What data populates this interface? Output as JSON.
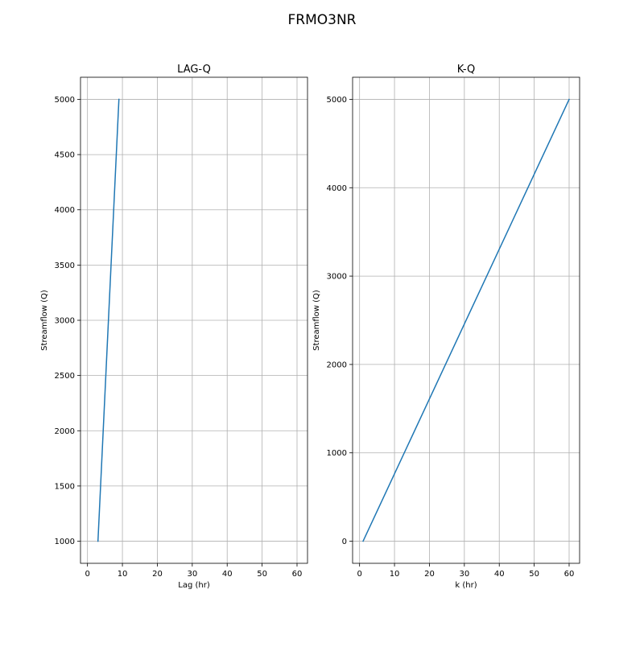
{
  "figure": {
    "title": "FRMO3NR"
  },
  "chart_data": [
    {
      "type": "line",
      "title": "LAG-Q",
      "xlabel": "Lag (hr)",
      "ylabel": "Streamflow (Q)",
      "xlim": [
        -2,
        63
      ],
      "ylim": [
        800,
        5200
      ],
      "xticks": [
        0,
        10,
        20,
        30,
        40,
        50,
        60
      ],
      "yticks": [
        1000,
        1500,
        2000,
        2500,
        3000,
        3500,
        4000,
        4500,
        5000
      ],
      "grid": true,
      "color": "#1f77b4",
      "series": [
        {
          "x": [
            3,
            9
          ],
          "y": [
            1000,
            5000
          ]
        }
      ]
    },
    {
      "type": "line",
      "title": "K-Q",
      "xlabel": "k (hr)",
      "ylabel": "Streamflow (Q)",
      "xlim": [
        -2,
        63
      ],
      "ylim": [
        -250,
        5250
      ],
      "xticks": [
        0,
        10,
        20,
        30,
        40,
        50,
        60
      ],
      "yticks": [
        0,
        1000,
        2000,
        3000,
        4000,
        5000
      ],
      "grid": true,
      "color": "#1f77b4",
      "series": [
        {
          "x": [
            1,
            60
          ],
          "y": [
            0,
            5000
          ]
        }
      ]
    }
  ]
}
